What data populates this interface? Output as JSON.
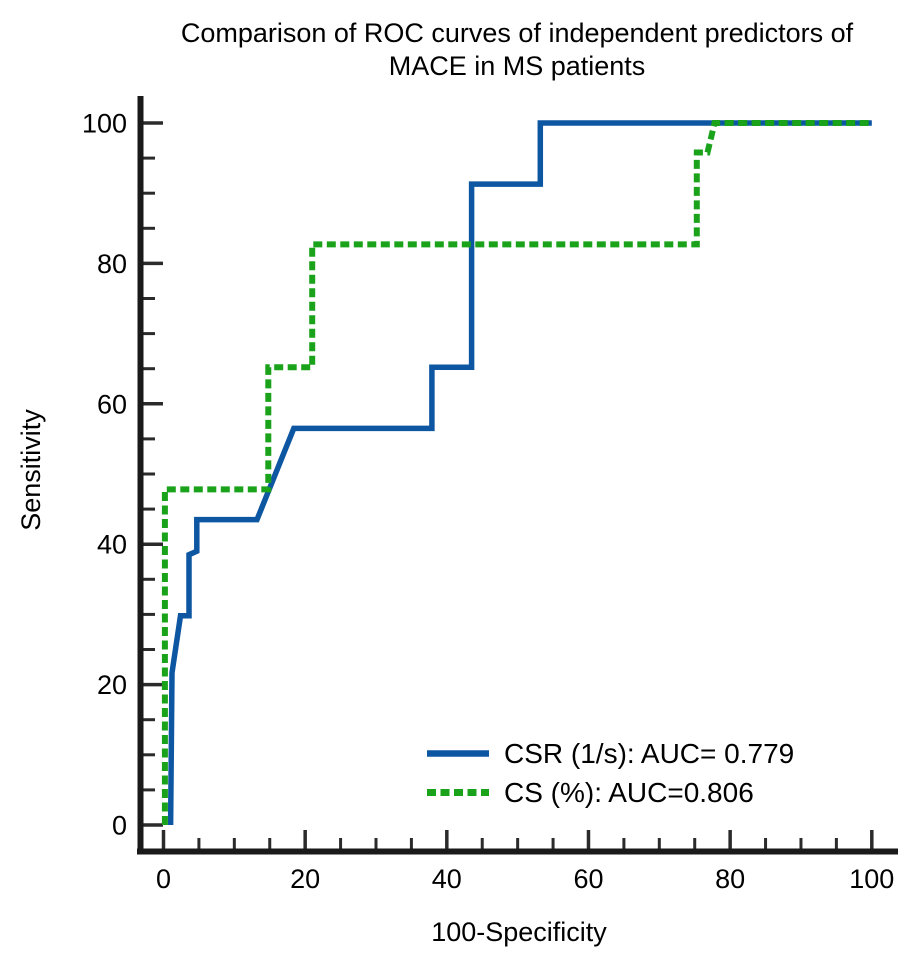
{
  "title": {
    "line1": "Comparison of ROC curves of independent predictors of",
    "line2": "MACE in MS patients"
  },
  "axes": {
    "x": {
      "label": "100-Specificity",
      "major_ticks": [
        0,
        20,
        40,
        60,
        80,
        100
      ],
      "minor_step": 5,
      "range": [
        0,
        100
      ]
    },
    "y": {
      "label": "Sensitivity",
      "major_ticks": [
        0,
        20,
        40,
        60,
        80,
        100
      ],
      "minor_step": 5,
      "range": [
        0,
        100
      ]
    }
  },
  "colors": {
    "csr_blue": "#0d56a2",
    "cs_green": "#1aa31a",
    "axis": "#1a1a1a",
    "tick": "#2b2b2b",
    "text": "#000000",
    "background": "#ffffff"
  },
  "chart_data": {
    "type": "line",
    "subtype": "roc-step-curves",
    "title": "Comparison of ROC curves of independent predictors of MACE in MS patients",
    "xlabel": "100-Specificity",
    "ylabel": "Sensitivity",
    "xlim": [
      0,
      100
    ],
    "ylim": [
      0,
      100
    ],
    "grid": false,
    "legend_position": "inside-bottom-right",
    "series": [
      {
        "name": "CSR (1/s)",
        "auc": 0.779,
        "legend_label": "CSR (1/s): AUC= 0.779",
        "color": "#0d56a2",
        "dash": "solid",
        "stroke_width": 5.5,
        "points": [
          [
            1.0,
            0
          ],
          [
            1.2,
            21.7
          ],
          [
            2.4,
            29.8
          ],
          [
            3.6,
            29.8
          ],
          [
            3.6,
            38.5
          ],
          [
            4.7,
            39.0
          ],
          [
            4.7,
            43.5
          ],
          [
            13.2,
            43.5
          ],
          [
            18.4,
            56.5
          ],
          [
            37.9,
            56.5
          ],
          [
            37.9,
            65.2
          ],
          [
            43.5,
            65.2
          ],
          [
            43.5,
            91.3
          ],
          [
            53.2,
            91.3
          ],
          [
            53.2,
            100
          ],
          [
            100,
            100
          ]
        ]
      },
      {
        "name": "CS (%)",
        "auc": 0.806,
        "legend_label": "CS (%): AUC=0.806",
        "color": "#1aa31a",
        "dash": "dashed",
        "stroke_width": 6,
        "points": [
          [
            0.2,
            0
          ],
          [
            0.2,
            47.8
          ],
          [
            14.8,
            47.8
          ],
          [
            14.8,
            65.2
          ],
          [
            21.0,
            65.2
          ],
          [
            21.0,
            82.7
          ],
          [
            75.3,
            82.7
          ],
          [
            75.3,
            95.8
          ],
          [
            76.8,
            95.8
          ],
          [
            77.8,
            100
          ],
          [
            100,
            100
          ]
        ]
      }
    ]
  }
}
